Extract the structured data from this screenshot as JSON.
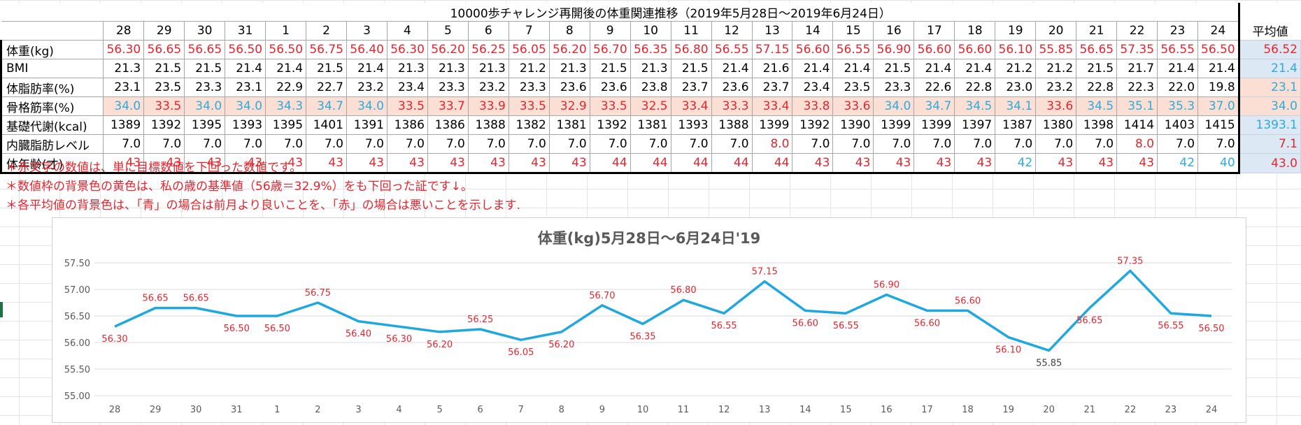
{
  "table": {
    "title": "10000歩チャレンジ再開後の体重関連推移（2019年5月28日～2019年6月24日）",
    "days": [
      "28",
      "29",
      "30",
      "31",
      "1",
      "2",
      "3",
      "4",
      "5",
      "6",
      "7",
      "8",
      "9",
      "10",
      "11",
      "12",
      "13",
      "14",
      "15",
      "16",
      "17",
      "18",
      "19",
      "20",
      "21",
      "22",
      "23",
      "24"
    ],
    "avg_label": "平均値",
    "rows": [
      {
        "label": "体重(kg)",
        "values": [
          "56.30",
          "56.65",
          "56.65",
          "56.50",
          "56.50",
          "56.75",
          "56.40",
          "56.30",
          "56.20",
          "56.25",
          "56.05",
          "56.20",
          "56.70",
          "56.35",
          "56.80",
          "56.55",
          "57.15",
          "56.60",
          "56.55",
          "56.90",
          "56.60",
          "56.60",
          "56.10",
          "55.85",
          "56.65",
          "57.35",
          "56.55",
          "56.50"
        ],
        "colors": [
          "red",
          "red",
          "red",
          "red",
          "red",
          "red",
          "red",
          "red",
          "red",
          "red",
          "red",
          "red",
          "red",
          "red",
          "red",
          "red",
          "red",
          "red",
          "red",
          "red",
          "red",
          "red",
          "red",
          "red",
          "red",
          "red",
          "red",
          "red"
        ],
        "avg": "56.52",
        "avg_color": "red",
        "avg_bg": "blue"
      },
      {
        "label": "BMI",
        "values": [
          "21.3",
          "21.5",
          "21.5",
          "21.4",
          "21.4",
          "21.5",
          "21.4",
          "21.3",
          "21.3",
          "21.3",
          "21.2",
          "21.3",
          "21.5",
          "21.3",
          "21.5",
          "21.4",
          "21.6",
          "21.4",
          "21.4",
          "21.5",
          "21.4",
          "21.4",
          "21.2",
          "21.2",
          "21.5",
          "21.7",
          "21.4",
          "21.4"
        ],
        "colors": [
          "blk",
          "blk",
          "blk",
          "blk",
          "blk",
          "blk",
          "blk",
          "blk",
          "blk",
          "blk",
          "blk",
          "blk",
          "blk",
          "blk",
          "blk",
          "blk",
          "blk",
          "blk",
          "blk",
          "blk",
          "blk",
          "blk",
          "blk",
          "blk",
          "blk",
          "blk",
          "blk",
          "blk"
        ],
        "avg": "21.4",
        "avg_color": "blue",
        "avg_bg": "blue"
      },
      {
        "label": "体脂肪率(%)",
        "values": [
          "23.1",
          "23.5",
          "23.3",
          "23.1",
          "22.9",
          "22.7",
          "23.2",
          "23.4",
          "23.3",
          "23.2",
          "23.3",
          "23.6",
          "23.6",
          "23.8",
          "23.7",
          "23.6",
          "23.7",
          "23.4",
          "23.5",
          "23.3",
          "22.6",
          "22.8",
          "23.0",
          "23.2",
          "22.8",
          "22.3",
          "22.0",
          "19.8"
        ],
        "colors": [
          "blk",
          "blk",
          "blk",
          "blk",
          "blk",
          "blk",
          "blk",
          "blk",
          "blk",
          "blk",
          "blk",
          "blk",
          "blk",
          "blk",
          "blk",
          "blk",
          "blk",
          "blk",
          "blk",
          "blk",
          "blk",
          "blk",
          "blk",
          "blk",
          "blk",
          "blk",
          "blk",
          "blk"
        ],
        "avg": "23.1",
        "avg_color": "blue",
        "avg_bg": "pink"
      },
      {
        "label": "骨格筋率(%)",
        "values": [
          "34.0",
          "33.5",
          "34.0",
          "34.0",
          "34.3",
          "34.7",
          "34.0",
          "33.5",
          "33.7",
          "33.9",
          "33.5",
          "32.9",
          "33.5",
          "32.5",
          "33.4",
          "33.3",
          "33.4",
          "33.8",
          "33.6",
          "34.0",
          "34.7",
          "34.5",
          "34.1",
          "33.6",
          "34.5",
          "35.1",
          "35.3",
          "37.0"
        ],
        "colors": [
          "blue",
          "red",
          "blue",
          "blue",
          "blue",
          "blue",
          "blue",
          "red",
          "red",
          "red",
          "red",
          "red",
          "red",
          "red",
          "red",
          "red",
          "red",
          "red",
          "red",
          "blue",
          "blue",
          "blue",
          "blue",
          "red",
          "blue",
          "blue",
          "blue",
          "blue"
        ],
        "avg": "34.0",
        "avg_color": "blue",
        "avg_bg": "pink",
        "row_bg": "pink"
      },
      {
        "label": "基礎代謝(kcal)",
        "values": [
          "1389",
          "1392",
          "1395",
          "1393",
          "1395",
          "1401",
          "1391",
          "1386",
          "1386",
          "1388",
          "1382",
          "1381",
          "1392",
          "1381",
          "1393",
          "1388",
          "1399",
          "1392",
          "1390",
          "1399",
          "1399",
          "1397",
          "1387",
          "1380",
          "1398",
          "1414",
          "1403",
          "1415"
        ],
        "colors": [
          "blk",
          "blk",
          "blk",
          "blk",
          "blk",
          "blk",
          "blk",
          "blk",
          "blk",
          "blk",
          "blk",
          "blk",
          "blk",
          "blk",
          "blk",
          "blk",
          "blk",
          "blk",
          "blk",
          "blk",
          "blk",
          "blk",
          "blk",
          "blk",
          "blk",
          "blk",
          "blk",
          "blk"
        ],
        "avg": "1393.1",
        "avg_color": "blue",
        "avg_bg": "blue"
      },
      {
        "label": "内臓脂肪レベル",
        "values": [
          "7.0",
          "7.0",
          "7.0",
          "7.0",
          "7.0",
          "7.0",
          "7.0",
          "7.0",
          "7.0",
          "7.0",
          "7.0",
          "7.0",
          "7.0",
          "7.0",
          "7.0",
          "7.0",
          "8.0",
          "7.0",
          "7.0",
          "7.0",
          "7.0",
          "7.0",
          "7.0",
          "7.0",
          "7.0",
          "8.0",
          "7.0",
          "7.0"
        ],
        "colors": [
          "blk",
          "blk",
          "blk",
          "blk",
          "blk",
          "blk",
          "blk",
          "blk",
          "blk",
          "blk",
          "blk",
          "blk",
          "blk",
          "blk",
          "blk",
          "blk",
          "red",
          "blk",
          "blk",
          "blk",
          "blk",
          "blk",
          "blk",
          "blk",
          "blk",
          "red",
          "blk",
          "blk"
        ],
        "avg": "7.1",
        "avg_color": "red",
        "avg_bg": "blue"
      },
      {
        "label": "体年齢(才)",
        "values": [
          "43",
          "43",
          "43",
          "43",
          "43",
          "43",
          "43",
          "43",
          "43",
          "43",
          "43",
          "43",
          "44",
          "44",
          "44",
          "44",
          "44",
          "43",
          "43",
          "43",
          "43",
          "43",
          "42",
          "43",
          "43",
          "43",
          "42",
          "40"
        ],
        "colors": [
          "red",
          "red",
          "red",
          "red",
          "red",
          "red",
          "red",
          "red",
          "red",
          "red",
          "red",
          "red",
          "red",
          "red",
          "red",
          "red",
          "red",
          "red",
          "red",
          "red",
          "red",
          "red",
          "blue",
          "red",
          "red",
          "red",
          "blue",
          "blue"
        ],
        "avg": "43.0",
        "avg_color": "red",
        "avg_bg": "blue"
      }
    ]
  },
  "notes": [
    "＊赤文字の数値は、単に目標数値を下回った数値です。",
    "＊数値枠の背景色の黄色は、私の歳の基準値（56歳＝32.9%）をも下回った証です↓。",
    "＊各平均値の背景色は、「青」の場合は前月より良いことを、「赤」の場合は悪いことを示します."
  ],
  "colors": {
    "red": "#e3262f",
    "blue": "#2eabd8",
    "line": "#1fa7df"
  },
  "chart_data": {
    "type": "line",
    "title": "体重(kg)5月28日～6月24日'19",
    "categories": [
      "28",
      "29",
      "30",
      "31",
      "1",
      "2",
      "3",
      "4",
      "5",
      "6",
      "7",
      "8",
      "9",
      "10",
      "11",
      "12",
      "13",
      "14",
      "15",
      "16",
      "17",
      "18",
      "19",
      "20",
      "21",
      "22",
      "23",
      "24"
    ],
    "series": [
      {
        "values": [
          56.3,
          56.65,
          56.65,
          56.5,
          56.5,
          56.75,
          56.4,
          56.3,
          56.2,
          56.25,
          56.05,
          56.2,
          56.7,
          56.35,
          56.8,
          56.55,
          57.15,
          56.6,
          56.55,
          56.9,
          56.6,
          56.6,
          56.1,
          55.85,
          56.65,
          57.35,
          56.55,
          56.5
        ]
      }
    ],
    "data_labels": [
      "56.30",
      "56.65",
      "56.65",
      "56.50",
      "56.50",
      "56.75",
      "56.40",
      "56.30",
      "56.20",
      "56.25",
      "56.05",
      "56.20",
      "56.70",
      "56.35",
      "56.80",
      "56.55",
      "57.15",
      "56.60",
      "56.55",
      "56.90",
      "56.60",
      "56.60",
      "56.10",
      "55.85",
      "56.65",
      "57.35",
      "56.55",
      "56.50"
    ],
    "label_colors": [
      "red",
      "red",
      "red",
      "red",
      "red",
      "red",
      "red",
      "red",
      "red",
      "red",
      "red",
      "red",
      "red",
      "red",
      "red",
      "red",
      "red",
      "red",
      "red",
      "red",
      "red",
      "red",
      "red",
      "blk",
      "red",
      "red",
      "red",
      "red"
    ],
    "yticks": [
      "57.50",
      "57.00",
      "56.50",
      "56.00",
      "55.50",
      "55.00"
    ],
    "ylim": [
      55.0,
      57.5
    ],
    "grid": true,
    "legend": "none"
  }
}
